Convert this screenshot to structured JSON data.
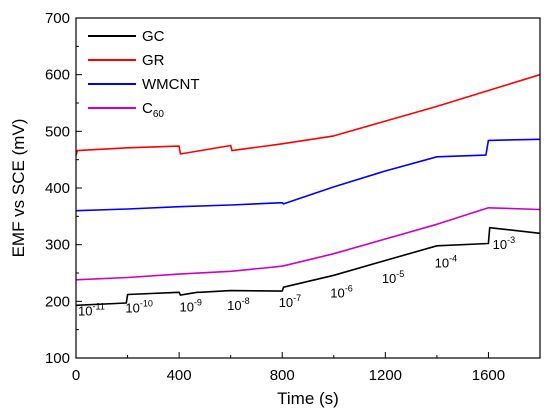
{
  "chart_data": {
    "type": "line",
    "xlabel": "Time (s)",
    "ylabel": "EMF vs SCE (mV)",
    "xlim": [
      0,
      1800
    ],
    "ylim": [
      100,
      700
    ],
    "xticks": [
      0,
      400,
      800,
      1200,
      1600
    ],
    "yticks": [
      100,
      200,
      300,
      400,
      500,
      600,
      700
    ],
    "x_tick_labels": [
      "0",
      "400",
      "800",
      "1200",
      "1600"
    ],
    "y_tick_labels": [
      "100",
      "200",
      "300",
      "400",
      "500",
      "600",
      "700"
    ],
    "legend_position": "top-left",
    "series": [
      {
        "name": "GC",
        "color": "#000000",
        "x": [
          0,
          195,
          200,
          400,
          405,
          470,
          480,
          600,
          800,
          805,
          1000,
          1200,
          1400,
          1600,
          1605,
          1800
        ],
        "y": [
          193,
          197,
          212,
          216,
          211,
          216,
          216,
          219,
          218,
          225,
          246,
          272,
          298,
          302,
          330,
          320
        ]
      },
      {
        "name": "GR",
        "color": "#ff0000",
        "x": [
          0,
          5,
          200,
          400,
          405,
          600,
          605,
          800,
          1000,
          1200,
          1400,
          1600,
          1800
        ],
        "y": [
          458,
          466,
          471,
          474,
          460,
          475,
          466,
          478,
          492,
          518,
          544,
          572,
          600
        ]
      },
      {
        "name": "WMCNT",
        "color": "#0000ff",
        "x": [
          0,
          200,
          400,
          600,
          800,
          805,
          1000,
          1200,
          1400,
          1590,
          1600,
          1800
        ],
        "y": [
          360,
          363,
          367,
          370,
          374,
          372,
          402,
          430,
          455,
          458,
          484,
          486
        ]
      },
      {
        "name": "C60",
        "label_base": "C",
        "label_sub": "60",
        "color": "#cc00cc",
        "x": [
          0,
          200,
          400,
          600,
          800,
          1000,
          1200,
          1400,
          1600,
          1800
        ],
        "y": [
          238,
          242,
          248,
          253,
          262,
          284,
          310,
          336,
          365,
          362
        ]
      }
    ],
    "annotations": [
      {
        "base": "10",
        "exp": "-11",
        "x": 60,
        "y": 175
      },
      {
        "base": "10",
        "exp": "-10",
        "x": 245,
        "y": 180
      },
      {
        "base": "10",
        "exp": "-9",
        "x": 445,
        "y": 182
      },
      {
        "base": "10",
        "exp": "-8",
        "x": 630,
        "y": 185
      },
      {
        "base": "10",
        "exp": "-7",
        "x": 830,
        "y": 190
      },
      {
        "base": "10",
        "exp": "-6",
        "x": 1030,
        "y": 207
      },
      {
        "base": "10",
        "exp": "-5",
        "x": 1230,
        "y": 232
      },
      {
        "base": "10",
        "exp": "-4",
        "x": 1435,
        "y": 260
      },
      {
        "base": "10",
        "exp": "-3",
        "x": 1660,
        "y": 292
      }
    ]
  }
}
